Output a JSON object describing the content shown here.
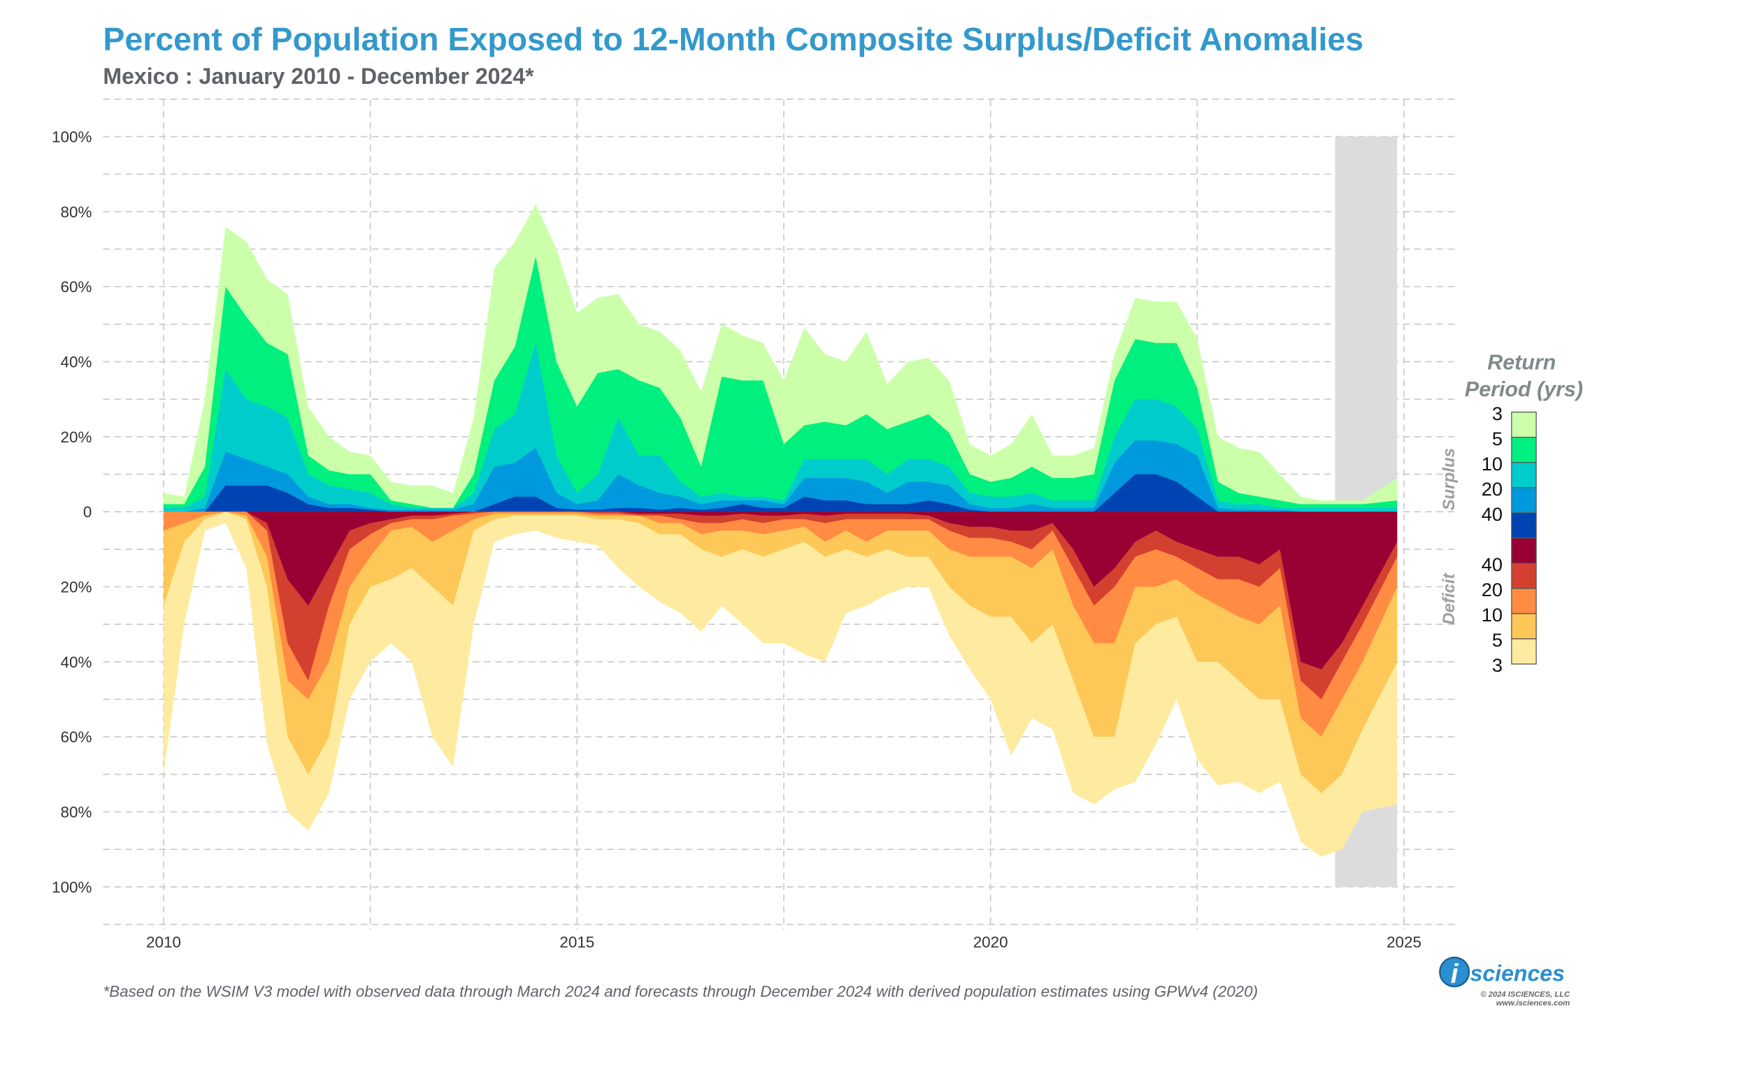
{
  "title": "Percent of Population Exposed to 12-Month Composite Surplus/Deficit Anomalies",
  "subtitle": "Mexico : January 2010 - December 2024*",
  "footnote": "*Based on the WSIM V3 model with observed data through March 2024 and forecasts through December 2024 with derived population estimates using GPWv4 (2020)",
  "logo": {
    "text": "isciences",
    "copyright": "© 2024 ISCIENCES, LLC",
    "url": "www.isciences.com"
  },
  "legend": {
    "title_line1": "Return",
    "title_line2": "Period (yrs)",
    "surplus_label": "Surplus",
    "deficit_label": "Deficit",
    "surplus_ticks": [
      "3",
      "5",
      "10",
      "20",
      "40"
    ],
    "deficit_ticks": [
      "40",
      "20",
      "10",
      "5",
      "3"
    ],
    "surplus_colors": [
      "#ccffaa",
      "#00f080",
      "#00cccc",
      "#0099dd",
      "#0044b4"
    ],
    "deficit_colors": [
      "#990033",
      "#d44030",
      "#ff8c42",
      "#fdc858",
      "#feeba0"
    ]
  },
  "chart_data": {
    "type": "area",
    "title": "Percent of Population Exposed to 12-Month Composite Surplus/Deficit Anomalies",
    "xlabel": "",
    "ylabel": "",
    "xlim": [
      "2009-07",
      "2025-08"
    ],
    "ylim": [
      -110,
      110
    ],
    "grid": true,
    "x_ticks": [
      "2010",
      "2015",
      "2020",
      "2025"
    ],
    "y_ticks": [
      {
        "value": 100,
        "label": "100%"
      },
      {
        "value": 80,
        "label": "80%"
      },
      {
        "value": 60,
        "label": "60%"
      },
      {
        "value": 40,
        "label": "40%"
      },
      {
        "value": 20,
        "label": "20%"
      },
      {
        "value": 0,
        "label": "0"
      },
      {
        "value": -20,
        "label": "20%"
      },
      {
        "value": -40,
        "label": "40%"
      },
      {
        "value": -60,
        "label": "60%"
      },
      {
        "value": -80,
        "label": "80%"
      },
      {
        "value": -100,
        "label": "100%"
      }
    ],
    "forecast_period": [
      "2024-03",
      "2024-12"
    ],
    "x": [
      "2010-01",
      "2010-04",
      "2010-07",
      "2010-10",
      "2011-01",
      "2011-04",
      "2011-07",
      "2011-10",
      "2012-01",
      "2012-04",
      "2012-07",
      "2012-10",
      "2013-01",
      "2013-04",
      "2013-07",
      "2013-10",
      "2014-01",
      "2014-04",
      "2014-07",
      "2014-10",
      "2015-01",
      "2015-04",
      "2015-07",
      "2015-10",
      "2016-01",
      "2016-04",
      "2016-07",
      "2016-10",
      "2017-01",
      "2017-04",
      "2017-07",
      "2017-10",
      "2018-01",
      "2018-04",
      "2018-07",
      "2018-10",
      "2019-01",
      "2019-04",
      "2019-07",
      "2019-10",
      "2020-01",
      "2020-04",
      "2020-07",
      "2020-10",
      "2021-01",
      "2021-04",
      "2021-07",
      "2021-10",
      "2022-01",
      "2022-04",
      "2022-07",
      "2022-10",
      "2023-01",
      "2023-04",
      "2023-07",
      "2023-10",
      "2024-01",
      "2024-04",
      "2024-07",
      "2024-12"
    ],
    "surplus": [
      {
        "name": "3",
        "color": "#ccffaa",
        "values": [
          5,
          4,
          30,
          76,
          72,
          62,
          58,
          28,
          20,
          16,
          15,
          8,
          7,
          7,
          5,
          25,
          65,
          72,
          82,
          70,
          53,
          57,
          58,
          50,
          48,
          43,
          32,
          50,
          47,
          45,
          35,
          49,
          42,
          40,
          48,
          34,
          40,
          41,
          35,
          18,
          15,
          18,
          26,
          15,
          15,
          17,
          42,
          57,
          56,
          56,
          46,
          20,
          17,
          16,
          10,
          4,
          3,
          3,
          3,
          9
        ]
      },
      {
        "name": "5",
        "color": "#00f080",
        "values": [
          2,
          2,
          12,
          60,
          52,
          45,
          42,
          15,
          11,
          10,
          10,
          3,
          2,
          1,
          1,
          10,
          35,
          44,
          68,
          40,
          28,
          37,
          38,
          35,
          33,
          25,
          12,
          36,
          35,
          35,
          18,
          23,
          24,
          23,
          26,
          22,
          24,
          26,
          21,
          10,
          8,
          9,
          12,
          9,
          9,
          10,
          35,
          46,
          45,
          45,
          33,
          8,
          5,
          4,
          3,
          2,
          2,
          2,
          2,
          3
        ]
      },
      {
        "name": "10",
        "color": "#00cccc",
        "values": [
          1,
          1,
          4,
          38,
          30,
          28,
          25,
          10,
          7,
          6,
          5,
          2,
          1,
          1,
          1,
          5,
          22,
          26,
          45,
          15,
          5,
          10,
          25,
          15,
          15,
          8,
          4,
          5,
          4,
          4,
          3,
          14,
          14,
          14,
          14,
          10,
          14,
          14,
          12,
          5,
          4,
          4,
          5,
          3,
          3,
          3,
          20,
          30,
          30,
          28,
          22,
          3,
          2,
          2,
          1,
          1,
          1,
          1,
          1,
          1
        ]
      },
      {
        "name": "20",
        "color": "#0099dd",
        "values": [
          0,
          0,
          1,
          16,
          14,
          12,
          10,
          4,
          2,
          2,
          1,
          0.5,
          0.5,
          0.5,
          0.5,
          2,
          12,
          13,
          17,
          5,
          2,
          3,
          10,
          7,
          5,
          4,
          2,
          3,
          3,
          3,
          2,
          9,
          9,
          9,
          8,
          5,
          8,
          8,
          7,
          2,
          1,
          1,
          2,
          1,
          1,
          1,
          13,
          19,
          19,
          18,
          15,
          1,
          0.5,
          0.5,
          0.5,
          0,
          0,
          0,
          0,
          0
        ]
      },
      {
        "name": "40",
        "color": "#0044b4",
        "values": [
          0,
          0,
          0,
          7,
          7,
          7,
          5,
          2,
          1,
          1,
          0.5,
          0,
          0,
          0,
          0,
          0,
          2,
          4,
          4,
          1,
          0.5,
          0.5,
          1,
          1,
          0.5,
          1,
          0.5,
          1,
          2,
          1,
          1,
          4,
          3,
          3,
          2,
          2,
          2,
          3,
          2,
          0.5,
          0,
          0,
          0,
          0,
          0,
          0,
          5,
          10,
          10,
          8,
          4,
          0,
          0,
          0,
          0,
          0,
          0,
          0,
          0,
          0
        ]
      }
    ],
    "deficit": [
      {
        "name": "3",
        "color": "#feeba0",
        "values": [
          70,
          30,
          5,
          3,
          15,
          62,
          80,
          85,
          75,
          50,
          40,
          35,
          40,
          60,
          68,
          30,
          8,
          6,
          5,
          7,
          8,
          9,
          15,
          20,
          24,
          27,
          32,
          25,
          30,
          35,
          35,
          38,
          40,
          27,
          25,
          22,
          20,
          20,
          33,
          42,
          50,
          65,
          55,
          58,
          75,
          78,
          74,
          72,
          62,
          50,
          66,
          73,
          72,
          75,
          72,
          88,
          92,
          90,
          80,
          78
        ]
      },
      {
        "name": "5",
        "color": "#fdc858",
        "values": [
          25,
          8,
          2,
          0,
          2,
          20,
          60,
          70,
          60,
          30,
          20,
          18,
          15,
          20,
          25,
          5,
          2,
          1,
          1,
          1,
          1,
          2,
          2,
          3,
          6,
          6,
          10,
          12,
          10,
          12,
          10,
          8,
          12,
          10,
          12,
          10,
          12,
          12,
          20,
          25,
          28,
          28,
          35,
          30,
          45,
          60,
          60,
          35,
          30,
          28,
          40,
          40,
          45,
          50,
          50,
          70,
          75,
          70,
          58,
          40
        ]
      },
      {
        "name": "10",
        "color": "#ff8c42",
        "values": [
          5,
          3,
          1,
          0,
          1,
          12,
          45,
          50,
          40,
          20,
          12,
          5,
          4,
          8,
          5,
          2,
          0.5,
          0.5,
          0.5,
          0.5,
          0.5,
          1,
          1,
          1,
          3,
          3,
          6,
          5,
          5,
          6,
          5,
          4,
          8,
          5,
          8,
          5,
          5,
          5,
          10,
          12,
          12,
          12,
          15,
          10,
          25,
          35,
          35,
          20,
          20,
          18,
          22,
          25,
          28,
          30,
          25,
          55,
          60,
          50,
          40,
          20
        ]
      },
      {
        "name": "20",
        "color": "#d44030",
        "values": [
          0,
          0,
          0,
          0,
          0,
          5,
          35,
          45,
          25,
          10,
          6,
          3,
          2,
          2,
          1,
          0.5,
          0,
          0,
          0,
          0,
          0,
          0.5,
          0.5,
          1,
          1,
          2,
          3,
          3,
          2,
          3,
          2,
          2,
          3,
          2,
          2,
          2,
          2,
          2,
          5,
          7,
          7,
          8,
          10,
          5,
          15,
          25,
          20,
          12,
          10,
          12,
          15,
          18,
          18,
          20,
          15,
          45,
          50,
          40,
          30,
          12
        ]
      },
      {
        "name": "40",
        "color": "#990033",
        "values": [
          0,
          0,
          0,
          0,
          0,
          3,
          18,
          25,
          15,
          5,
          3,
          2,
          1,
          1,
          0.5,
          0,
          0,
          0,
          0,
          0,
          0,
          0,
          0,
          0.5,
          0.5,
          0.5,
          1,
          1,
          0.5,
          1,
          1,
          0.5,
          1,
          0.5,
          0.5,
          0.5,
          0.5,
          1,
          3,
          4,
          4,
          5,
          5,
          3,
          10,
          20,
          15,
          8,
          5,
          8,
          10,
          12,
          12,
          14,
          10,
          40,
          42,
          35,
          25,
          8
        ]
      }
    ]
  }
}
